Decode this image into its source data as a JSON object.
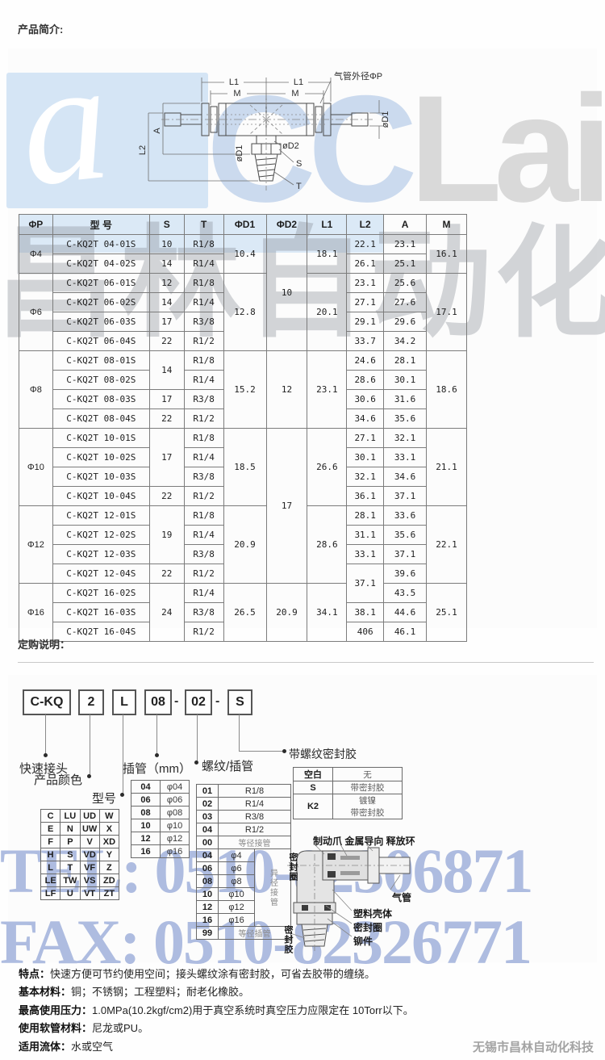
{
  "page": {
    "intro_heading": "产品简介:",
    "order_heading": "定购说明：",
    "footer": "无锡市昌林自动化科技"
  },
  "watermark": {
    "logo_mark": "a",
    "logo_cc": "CC",
    "logo_rest": "Lair",
    "cn_text": "昌林自动化",
    "tel": "TEL: 0510-82306871",
    "fax": "FAX: 0510-82326771",
    "blue": "#d5e5f5",
    "gray": "#d6d6d6"
  },
  "diagram": {
    "l1_left": "L1",
    "l1_right": "L1",
    "m_left": "M",
    "m_right": "M",
    "tube_od": "气管外径ΦP",
    "d1_right": "øD1",
    "d1_center": "øD1",
    "d2": "øD2",
    "s": "S",
    "t": "T",
    "a": "A",
    "l2": "L2"
  },
  "spec_table": {
    "headers": [
      "ΦP",
      "型  号",
      "S",
      "T",
      "ΦD1",
      "ΦD2",
      "L1",
      "L2",
      "A",
      "M"
    ],
    "rows": [
      [
        [
          "Φ4",
          2
        ],
        "C-KQ2T 04-01S",
        "10",
        "R1/8",
        [
          "10.4",
          2
        ],
        [
          "10",
          6
        ],
        [
          "18.1",
          2
        ],
        "22.1",
        "23.1",
        [
          "16.1",
          2
        ]
      ],
      [
        "C-KQ2T 04-02S",
        "14",
        "R1/4",
        "26.1",
        "25.1"
      ],
      [
        [
          "Φ6",
          4
        ],
        "C-KQ2T 06-01S",
        "12",
        "R1/8",
        [
          "12.8",
          4
        ],
        [
          "20.1",
          4
        ],
        "23.1",
        "25.6",
        [
          "17.1",
          4
        ]
      ],
      [
        "C-KQ2T 06-02S",
        "14",
        "R1/4",
        "27.1",
        "27.6"
      ],
      [
        "C-KQ2T 06-03S",
        "17",
        "R3/8",
        "29.1",
        "29.6"
      ],
      [
        "C-KQ2T 06-04S",
        "22",
        "R1/2",
        "33.7",
        "34.2"
      ],
      [
        [
          "Φ8",
          4
        ],
        "C-KQ2T 08-01S",
        [
          "14",
          2
        ],
        "R1/8",
        [
          "15.2",
          4
        ],
        [
          "12",
          4
        ],
        [
          "23.1",
          4
        ],
        "24.6",
        "28.1",
        [
          "18.6",
          4
        ]
      ],
      [
        "C-KQ2T 08-02S",
        "R1/4",
        "28.6",
        "30.1"
      ],
      [
        "C-KQ2T 08-03S",
        "17",
        "R3/8",
        "30.6",
        "31.6"
      ],
      [
        "C-KQ2T 08-04S",
        "22",
        "R1/2",
        "34.6",
        "35.6"
      ],
      [
        [
          "Φ10",
          4
        ],
        "C-KQ2T 10-01S",
        [
          "17",
          3
        ],
        "R1/8",
        [
          "18.5",
          4
        ],
        [
          "17",
          8
        ],
        [
          "26.6",
          4
        ],
        "27.1",
        "32.1",
        [
          "21.1",
          4
        ]
      ],
      [
        "C-KQ2T 10-02S",
        "R1/4",
        "30.1",
        "33.1"
      ],
      [
        "C-KQ2T 10-03S",
        "R3/8",
        "32.1",
        "34.6"
      ],
      [
        "C-KQ2T 10-04S",
        "22",
        "R1/2",
        "36.1",
        "37.1"
      ],
      [
        [
          "Φ12",
          4
        ],
        "C-KQ2T 12-01S",
        [
          "19",
          3
        ],
        "R1/8",
        [
          "20.9",
          4
        ],
        [
          "28.6",
          4
        ],
        "28.1",
        "33.6",
        [
          "22.1",
          4
        ]
      ],
      [
        "C-KQ2T 12-02S",
        "R1/4",
        "31.1",
        "35.6"
      ],
      [
        "C-KQ2T 12-03S",
        "R3/8",
        "33.1",
        "37.1"
      ],
      [
        "C-KQ2T 12-04S",
        "22",
        "R1/2",
        [
          "37.1",
          2
        ],
        "39.6"
      ],
      [
        [
          "Φ16",
          3
        ],
        "C-KQ2T 16-02S",
        [
          "24",
          3
        ],
        "R1/4",
        [
          "26.5",
          3
        ],
        [
          "20.9",
          3
        ],
        [
          "34.1",
          3
        ],
        "43.5",
        [
          "25.1",
          3
        ]
      ],
      [
        "C-KQ2T 16-03S",
        "R3/8",
        "38.1",
        "44.6"
      ],
      [
        "C-KQ2T 16-04S",
        "R1/2",
        "406",
        "46.1"
      ]
    ]
  },
  "order_code": {
    "series": "C-KQ",
    "color_code": "2",
    "model_code": "L",
    "tube_code": "08",
    "thread_code": "02",
    "seal_code": "S",
    "dash": "-",
    "labels": {
      "quick": "快速接头",
      "color": "产品颜色",
      "model": "型号",
      "tube": "插管（mm）",
      "thread": "螺纹/插管",
      "seal": "带螺纹密封胶"
    }
  },
  "model_grid": [
    [
      "C",
      "LU",
      "UD",
      "W"
    ],
    [
      "E",
      "N",
      "UW",
      "X"
    ],
    [
      "F",
      "P",
      "V",
      "XD"
    ],
    [
      "H",
      "S",
      "VD",
      "Y"
    ],
    [
      "L",
      "T",
      "VF",
      "Z"
    ],
    [
      "LE",
      "TW",
      "VS",
      "ZD"
    ],
    [
      "LF",
      "U",
      "VT",
      "ZT"
    ]
  ],
  "tube_table": {
    "rows": [
      [
        "04",
        "φ04"
      ],
      [
        "06",
        "φ06"
      ],
      [
        "08",
        "φ08"
      ],
      [
        "10",
        "φ10"
      ],
      [
        "12",
        "φ12"
      ],
      [
        "16",
        "φ16"
      ]
    ]
  },
  "thread_table": {
    "side_label": "异径接管",
    "rows": [
      {
        "c": "01",
        "v": "R1/8",
        "span": 2
      },
      {
        "c": "02",
        "v": "R1/4",
        "span": 2
      },
      {
        "c": "03",
        "v": "R3/8",
        "span": 2
      },
      {
        "c": "04",
        "v": "R1/2",
        "span": 2
      },
      {
        "c": "00",
        "v": "等径接管",
        "span": 2,
        "gray": true
      },
      {
        "c": "04",
        "v": "φ4",
        "side": true
      },
      {
        "c": "06",
        "v": "φ6"
      },
      {
        "c": "08",
        "v": "φ8"
      },
      {
        "c": "10",
        "v": "φ10"
      },
      {
        "c": "12",
        "v": "φ12"
      },
      {
        "c": "16",
        "v": "φ16"
      },
      {
        "c": "99",
        "v": "等径插管",
        "span": 2,
        "gray": true
      }
    ]
  },
  "seal_table": {
    "rows": [
      [
        "空白",
        "无"
      ],
      [
        "S",
        "带密封胶"
      ],
      [
        "K2",
        "镀镍\n带密封胶"
      ]
    ]
  },
  "elbow_diagram": {
    "top_label": "制动爪 金属导向 释放环",
    "seal_ring_left": "密封圈",
    "tube": "气管",
    "plastic_body": "塑料壳体",
    "seal_ring": "密封圈",
    "rivet": "铆件",
    "sealant": "密封胶"
  },
  "notes": [
    {
      "label": "特点：",
      "text": "快速方便可节约使用空间；接头螺纹涂有密封胶，可省去胶带的缠绕。"
    },
    {
      "label": "基本材料：",
      "text": "铜；不锈钢；工程塑料；耐老化橡胶。"
    },
    {
      "label": "最高使用压力：",
      "text": "1.0MPa(10.2kgf/cm2)用于真空系统时真空压力应限定在 10Torr以下。"
    },
    {
      "label": "使用软管材料：",
      "text": "尼龙或PU。"
    },
    {
      "label": "适用流体：",
      "text": "水或空气"
    }
  ]
}
